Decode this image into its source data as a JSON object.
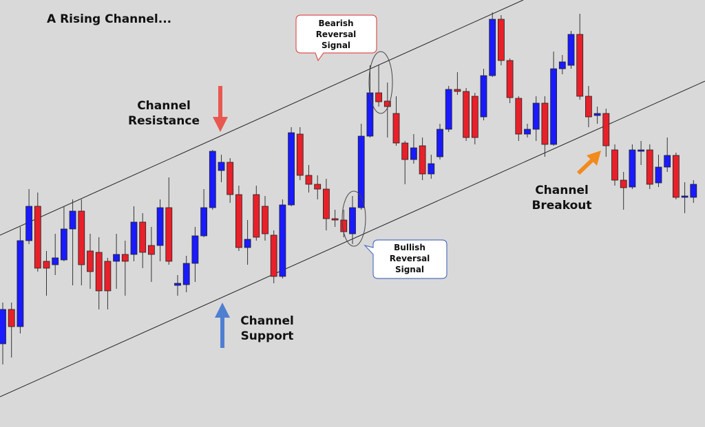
{
  "chart_data": {
    "type": "candlestick",
    "title": "A Rising Channel...",
    "annotations": {
      "resistance": [
        "Channel",
        "Resistance"
      ],
      "support": [
        "Channel",
        "Support"
      ],
      "bearish": [
        "Bearish",
        "Reversal",
        "Signal"
      ],
      "bullish": [
        "Bullish",
        "Reversal",
        "Signal"
      ],
      "breakout": [
        "Channel",
        "Breakout"
      ]
    },
    "up_color": "#1a1aff",
    "down_color": "#e8202a",
    "ylim": [
      0,
      621
    ],
    "open": [
      121,
      171,
      146,
      271,
      321,
      241,
      236,
      243,
      288,
      314,
      256,
      254,
      241,
      241,
      251,
      251,
      298,
      264,
      264,
      319,
      206,
      207,
      238,
      278,
      319,
      373,
      385,
      338,
      261,
      338,
      321,
      279,
      219,
      323,
      426,
      366,
      353,
      346,
      303,
      301,
      281,
      319,
      423,
      486,
      474,
      456,
      413,
      389,
      409,
      368,
      393,
      433,
      491,
      488,
      481,
      451,
      511,
      593,
      533,
      478,
      426,
      433,
      471,
      411,
      521,
      526,
      571,
      481,
      453,
      456,
      403,
      359,
      349,
      401,
      403,
      355,
      378,
      395,
      334,
      334
    ],
    "high": [
      181,
      181,
      291,
      346,
      341,
      256,
      281,
      321,
      331,
      331,
      281,
      276,
      246,
      281,
      271,
      321,
      311,
      291,
      331,
      363,
      221,
      249,
      291,
      346,
      403,
      396,
      391,
      351,
      301,
      351,
      336,
      286,
      331,
      436,
      436,
      381,
      366,
      361,
      316,
      316,
      336,
      441,
      526,
      526,
      501,
      481,
      416,
      426,
      421,
      396,
      441,
      496,
      516,
      493,
      486,
      521,
      603,
      599,
      536,
      481,
      441,
      481,
      481,
      546,
      541,
      576,
      601,
      496,
      466,
      463,
      411,
      371,
      411,
      416,
      411,
      396,
      421,
      399,
      356,
      359
    ],
    "low": [
      91,
      101,
      136,
      266,
      226,
      191,
      221,
      241,
      206,
      206,
      201,
      171,
      171,
      201,
      191,
      241,
      231,
      211,
      241,
      236,
      191,
      196,
      211,
      276,
      316,
      356,
      326,
      256,
      236,
      271,
      271,
      209,
      216,
      321,
      359,
      341,
      331,
      286,
      291,
      276,
      266,
      316,
      421,
      466,
      421,
      409,
      353,
      383,
      359,
      361,
      389,
      429,
      483,
      416,
      411,
      446,
      509,
      526,
      471,
      416,
      421,
      416,
      393,
      409,
      513,
      521,
      476,
      436,
      441,
      393,
      351,
      316,
      346,
      381,
      346,
      349,
      371,
      331,
      311,
      326
    ],
    "close": [
      171,
      146,
      271,
      321,
      231,
      231,
      246,
      288,
      314,
      236,
      226,
      198,
      198,
      251,
      241,
      298,
      254,
      251,
      319,
      241,
      209,
      238,
      278,
      319,
      401,
      385,
      338,
      261,
      273,
      276,
      281,
      219,
      323,
      428,
      366,
      353,
      346,
      303,
      301,
      284,
      319,
      423,
      486,
      473,
      466,
      413,
      389,
      406,
      368,
      383,
      433,
      491,
      488,
      421,
      421,
      511,
      593,
      533,
      479,
      426,
      433,
      471,
      411,
      521,
      531,
      571,
      481,
      451,
      456,
      409,
      359,
      348,
      403,
      403,
      353,
      378,
      395,
      334,
      336,
      353
    ]
  }
}
